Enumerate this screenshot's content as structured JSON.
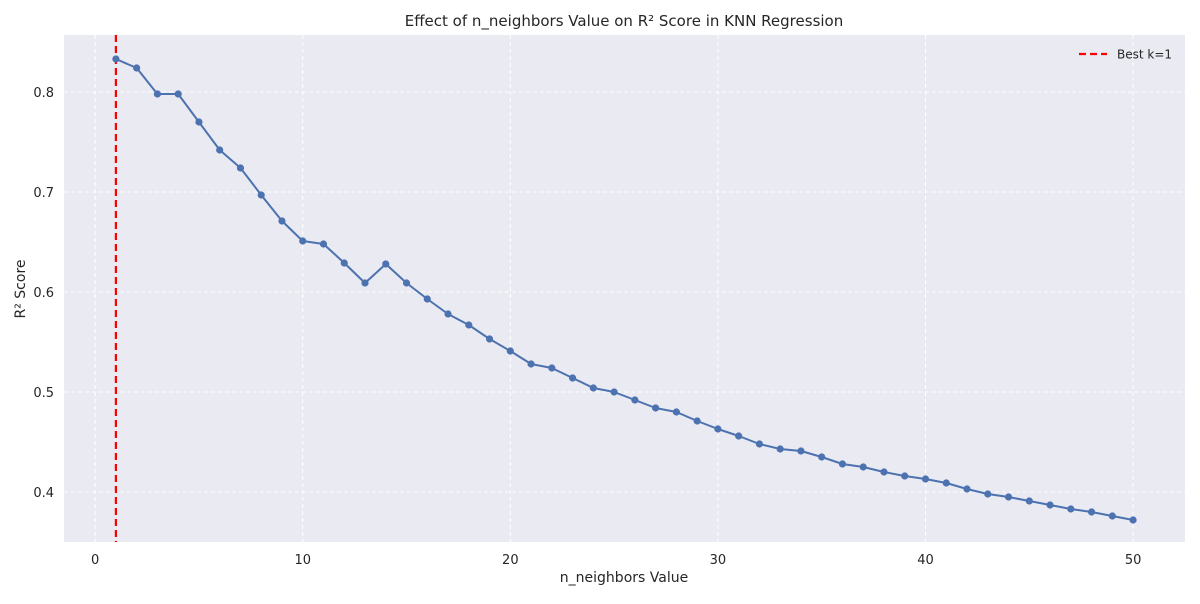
{
  "chart_data": {
    "type": "line",
    "title": "Effect of n_neighbors Value on R² Score in KNN Regression",
    "xlabel": "n_neighbors Value",
    "ylabel": "R² Score",
    "xlim": [
      -1.5,
      52.5
    ],
    "ylim": [
      0.35,
      0.857
    ],
    "xticks": [
      0,
      10,
      20,
      30,
      40,
      50
    ],
    "yticks": [
      0.4,
      0.5,
      0.6,
      0.7,
      0.8
    ],
    "grid": true,
    "legend_position": "top-right",
    "series": [
      {
        "color": "#4C72B0",
        "x": [
          1,
          2,
          3,
          4,
          5,
          6,
          7,
          8,
          9,
          10,
          11,
          12,
          13,
          14,
          15,
          16,
          17,
          18,
          19,
          20,
          21,
          22,
          23,
          24,
          25,
          26,
          27,
          28,
          29,
          30,
          31,
          32,
          33,
          34,
          35,
          36,
          37,
          38,
          39,
          40,
          41,
          42,
          43,
          44,
          45,
          46,
          47,
          48,
          49,
          50
        ],
        "values": [
          0.833,
          0.824,
          0.798,
          0.798,
          0.77,
          0.742,
          0.724,
          0.697,
          0.671,
          0.651,
          0.648,
          0.629,
          0.609,
          0.628,
          0.609,
          0.593,
          0.578,
          0.567,
          0.553,
          0.541,
          0.528,
          0.524,
          0.514,
          0.504,
          0.5,
          0.492,
          0.484,
          0.48,
          0.471,
          0.463,
          0.456,
          0.448,
          0.443,
          0.441,
          0.435,
          0.428,
          0.425,
          0.42,
          0.416,
          0.413,
          0.409,
          0.403,
          0.398,
          0.395,
          0.391,
          0.387,
          0.383,
          0.38,
          0.376,
          0.372
        ]
      }
    ],
    "reference_lines": [
      {
        "orientation": "vertical",
        "x": 1,
        "label": "Best k=1",
        "color": "#ff0000",
        "style": "dashed"
      }
    ]
  }
}
